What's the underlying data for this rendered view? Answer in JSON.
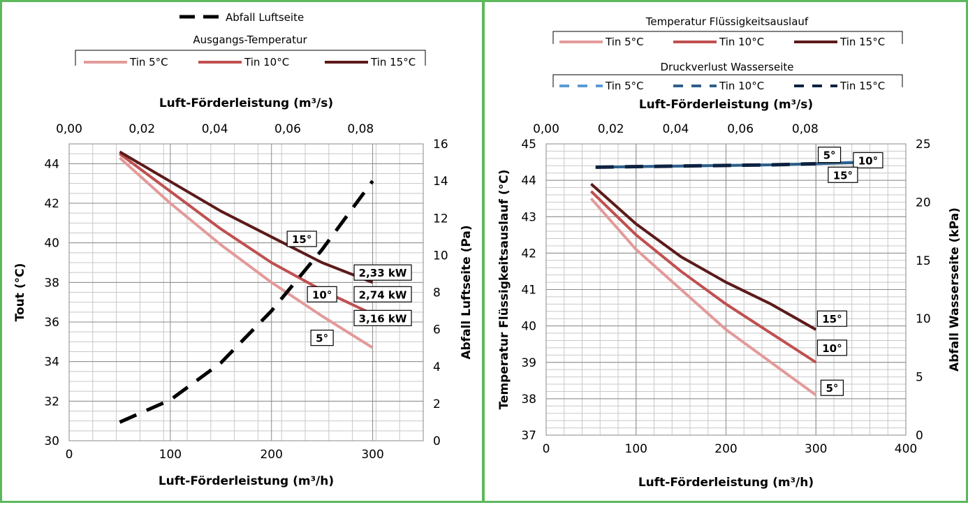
{
  "chart_data": [
    {
      "type": "line",
      "legend_top": {
        "label": "Abfall Luftseite"
      },
      "legend_group": {
        "title": "Ausgangs-Temperatur",
        "items": [
          {
            "label": "Tin 5°C",
            "color": "#e39a9a"
          },
          {
            "label": "Tin 10°C",
            "color": "#c05050"
          },
          {
            "label": "Tin 15°C",
            "color": "#5c1a1a"
          }
        ]
      },
      "xlabel_top": "Luft-Förderleistung (m³/s)",
      "xlabel": "Luft-Förderleistung (m³/h)",
      "ylabel": "Tout (°C)",
      "y2label": "Abfall Luftseite (Pa)",
      "xlim": [
        0,
        350
      ],
      "ylim": [
        30,
        45
      ],
      "y2lim": [
        0,
        16
      ],
      "x_top_lim": [
        0,
        0.0972
      ],
      "x_ticks": [
        "0",
        "100",
        "200",
        "300"
      ],
      "x_top_ticks": [
        "0,00",
        "0,02",
        "0,04",
        "0,06",
        "0,08"
      ],
      "y_ticks": [
        "30",
        "32",
        "34",
        "36",
        "38",
        "40",
        "42",
        "44"
      ],
      "y2_ticks": [
        "0",
        "2",
        "4",
        "6",
        "8",
        "10",
        "12",
        "14",
        "16"
      ],
      "series": [
        {
          "name": "Tin 5°C",
          "color": "#e39a9a",
          "axis": "left",
          "style": "solid",
          "x": [
            50,
            100,
            150,
            200,
            250,
            300
          ],
          "y": [
            44.3,
            42.0,
            39.9,
            38.0,
            36.3,
            34.7
          ]
        },
        {
          "name": "Tin 10°C",
          "color": "#c05050",
          "axis": "left",
          "style": "solid",
          "x": [
            50,
            100,
            150,
            200,
            250,
            300
          ],
          "y": [
            44.5,
            42.6,
            40.7,
            39.0,
            37.6,
            36.4
          ]
        },
        {
          "name": "Tin 15°C",
          "color": "#5c1a1a",
          "axis": "left",
          "style": "solid",
          "x": [
            50,
            100,
            150,
            200,
            250,
            300
          ],
          "y": [
            44.6,
            43.1,
            41.6,
            40.3,
            39.0,
            38.0
          ]
        },
        {
          "name": "Abfall Luftseite",
          "color": "#000000",
          "axis": "right",
          "style": "dashed",
          "x": [
            50,
            100,
            150,
            200,
            250,
            300
          ],
          "y": [
            1.0,
            2.2,
            4.2,
            7.0,
            10.3,
            14.0
          ]
        }
      ],
      "annotations": [
        {
          "text": "15°",
          "x": 230,
          "y": 40.2
        },
        {
          "text": "10°",
          "x": 250,
          "y": 37.4
        },
        {
          "text": "5°",
          "x": 250,
          "y": 35.2
        },
        {
          "text": "2,33 kW",
          "x": 310,
          "y": 38.5
        },
        {
          "text": "2,74 kW",
          "x": 310,
          "y": 37.4
        },
        {
          "text": "3,16 kW",
          "x": 310,
          "y": 36.2
        }
      ],
      "grid": true
    },
    {
      "type": "line",
      "legend_group1": {
        "title": "Temperatur Flüssigkeitsauslauf",
        "items": [
          {
            "label": "Tin 5°C",
            "color": "#e39a9a"
          },
          {
            "label": "Tin 10°C",
            "color": "#c05050"
          },
          {
            "label": "Tin 15°C",
            "color": "#5c1a1a"
          }
        ]
      },
      "legend_group2": {
        "title": "Druckverlust Wasserseite",
        "items": [
          {
            "label": "Tin 5°C",
            "color": "#5b9bd5"
          },
          {
            "label": "Tin 10°C",
            "color": "#2f5f8a"
          },
          {
            "label": "Tin 15°C",
            "color": "#0d2240"
          }
        ]
      },
      "xlabel_top": "Luft-Förderleistung (m³/s)",
      "xlabel": "Luft-Förderleistung (m³/h)",
      "ylabel": "Temperatur Flüssigkeitsauslauf (°C)",
      "y2label": "Abfall Wasserseite (kPa)",
      "xlim": [
        0,
        400
      ],
      "ylim": [
        37,
        45
      ],
      "y2lim": [
        0,
        25
      ],
      "x_top_lim": [
        0,
        0.1111
      ],
      "x_ticks": [
        "0",
        "100",
        "200",
        "300",
        "400"
      ],
      "x_top_ticks": [
        "0,00",
        "0,02",
        "0,04",
        "0,06",
        "0,08"
      ],
      "y_ticks": [
        "37",
        "38",
        "39",
        "40",
        "41",
        "42",
        "43",
        "44",
        "45"
      ],
      "y2_ticks": [
        "0",
        "5",
        "10",
        "15",
        "20",
        "25"
      ],
      "series": [
        {
          "name": "Tin 5°C",
          "color": "#e39a9a",
          "axis": "left",
          "style": "solid",
          "x": [
            50,
            100,
            150,
            200,
            250,
            300
          ],
          "y": [
            43.5,
            42.1,
            41.0,
            39.9,
            39.0,
            38.1
          ]
        },
        {
          "name": "Tin 10°C",
          "color": "#c05050",
          "axis": "left",
          "style": "solid",
          "x": [
            50,
            100,
            150,
            200,
            250,
            300
          ],
          "y": [
            43.7,
            42.5,
            41.5,
            40.6,
            39.8,
            39.0
          ]
        },
        {
          "name": "Tin 15°C",
          "color": "#5c1a1a",
          "axis": "left",
          "style": "solid",
          "x": [
            50,
            100,
            150,
            200,
            250,
            300
          ],
          "y": [
            43.9,
            42.8,
            41.9,
            41.2,
            40.6,
            39.9
          ]
        },
        {
          "name": "Tin 5°C",
          "color": "#5b9bd5",
          "axis": "right",
          "style": "solid",
          "x": [
            55,
            100,
            150,
            200,
            250,
            300,
            350
          ],
          "y": [
            23.0,
            23.05,
            23.1,
            23.15,
            23.2,
            23.3,
            23.45
          ]
        },
        {
          "name": "Tin 10°C",
          "color": "#2f5f8a",
          "axis": "right",
          "style": "solid",
          "x": [
            55,
            100,
            150,
            200,
            250,
            300,
            350
          ],
          "y": [
            23.0,
            23.05,
            23.1,
            23.15,
            23.2,
            23.3,
            23.4
          ]
        },
        {
          "name": "Tin 15°C",
          "color": "#0d2240",
          "axis": "right",
          "style": "dashed",
          "x": [
            55,
            100,
            150,
            200,
            250,
            300
          ],
          "y": [
            23.0,
            23.05,
            23.1,
            23.15,
            23.2,
            23.3
          ]
        }
      ],
      "annotations": [
        {
          "text": "5°",
          "x": 315,
          "y": 44.7
        },
        {
          "text": "10°",
          "x": 358,
          "y": 44.55
        },
        {
          "text": "15°",
          "x": 330,
          "y": 44.15
        },
        {
          "text": "15°",
          "x": 318,
          "y": 40.2
        },
        {
          "text": "10°",
          "x": 318,
          "y": 39.4
        },
        {
          "text": "5°",
          "x": 318,
          "y": 38.3
        }
      ],
      "grid": true
    }
  ]
}
